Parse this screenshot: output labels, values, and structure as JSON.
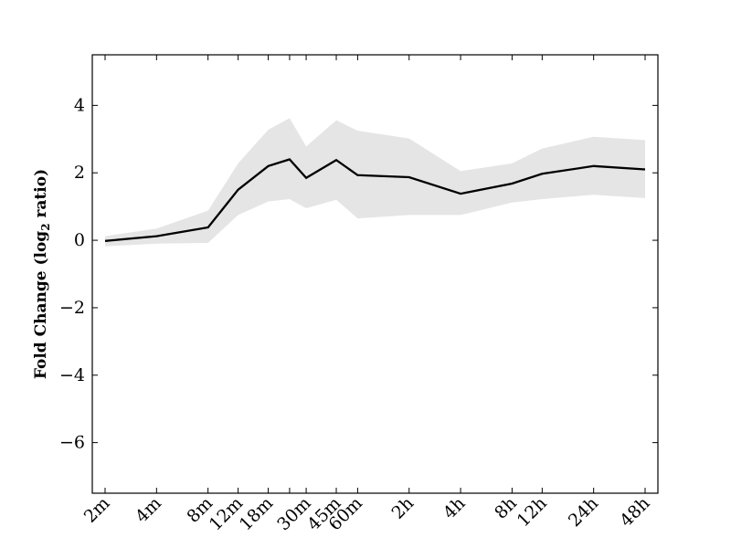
{
  "chart_data": {
    "type": "line",
    "title": "",
    "xlabel": "",
    "ylabel": {
      "prefix": "Fold Change (log",
      "subscript": "2",
      "suffix": " ratio)"
    },
    "ylim": [
      -7.5,
      5.5
    ],
    "yticks": [
      4,
      2,
      0,
      -2,
      -4,
      -6
    ],
    "ytick_labels": [
      "4",
      "2",
      "0",
      "−2",
      "−4",
      "−6"
    ],
    "grid": false,
    "x_scale": "log",
    "x_minutes": [
      2,
      4,
      8,
      12,
      18,
      24,
      30,
      45,
      60,
      120,
      240,
      480,
      720,
      1440,
      2880
    ],
    "xtick_labels": [
      "2m",
      "4m",
      "8m",
      "12m",
      "18m",
      "",
      "30m",
      "45m",
      "60m",
      "2h",
      "4h",
      "8h",
      "12h",
      "24h",
      "48h"
    ],
    "series": [
      {
        "values": [
          -0.02,
          0.12,
          0.38,
          1.5,
          2.2,
          2.4,
          1.85,
          2.38,
          1.93,
          1.87,
          1.38,
          1.68,
          1.97,
          2.2,
          2.1
        ],
        "lower": [
          -0.18,
          -0.1,
          -0.08,
          0.75,
          1.15,
          1.22,
          0.95,
          1.2,
          0.65,
          0.75,
          0.75,
          1.12,
          1.22,
          1.35,
          1.25
        ],
        "upper": [
          0.12,
          0.35,
          0.88,
          2.28,
          3.28,
          3.62,
          2.78,
          3.56,
          3.25,
          3.02,
          2.05,
          2.28,
          2.72,
          3.07,
          2.97
        ],
        "line_color": "#000000",
        "band_color": "#e5e5e5"
      }
    ]
  }
}
